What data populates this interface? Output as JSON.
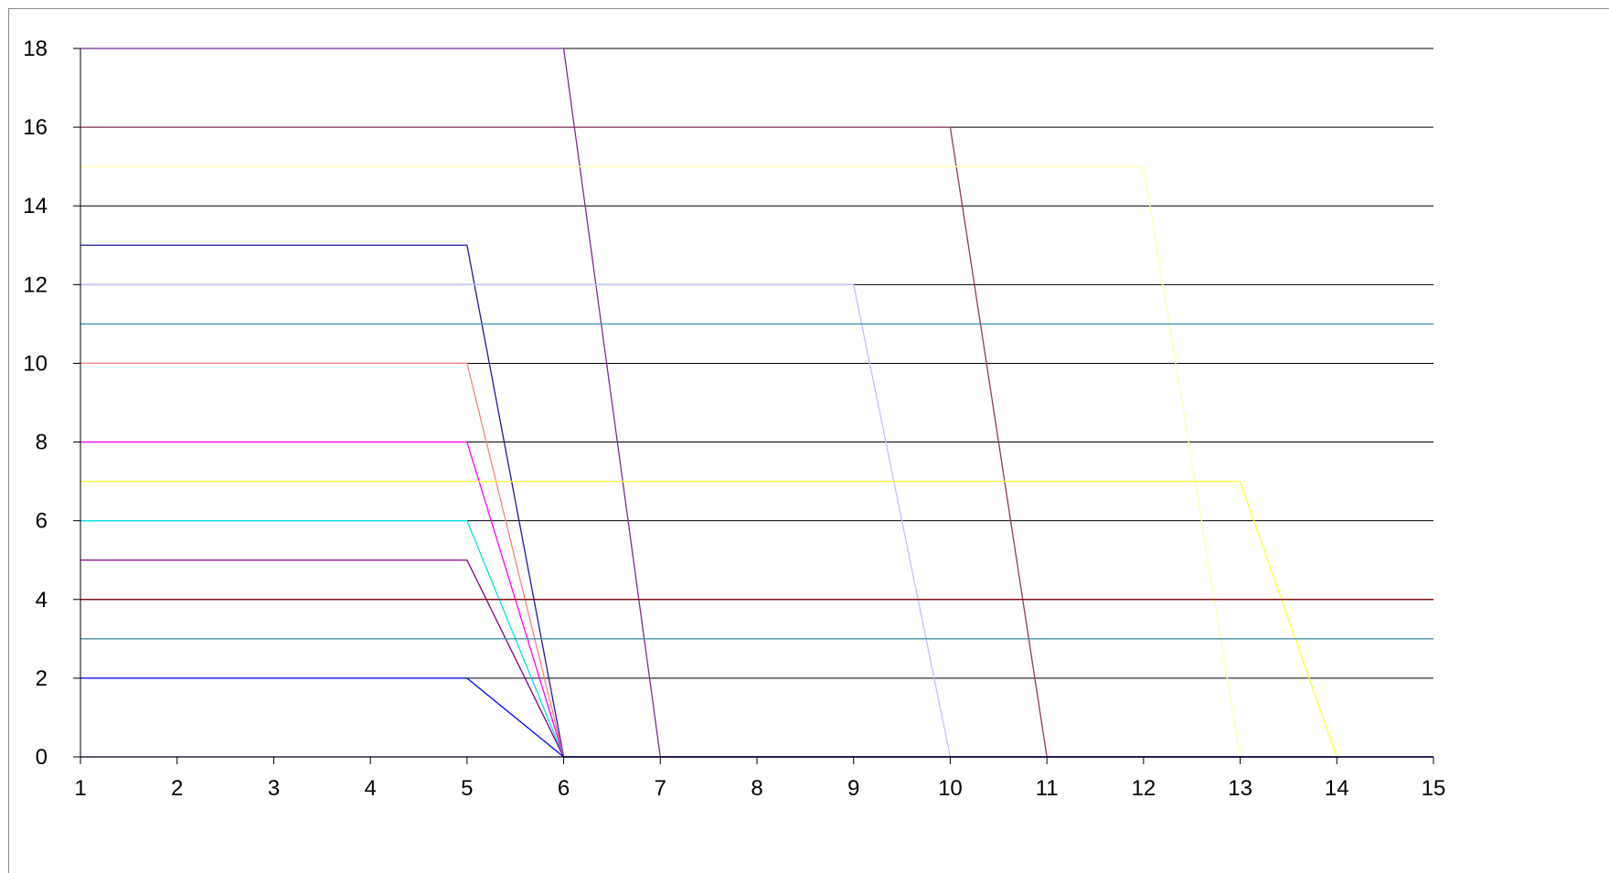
{
  "chart_data": {
    "type": "line",
    "title": "",
    "xlabel": "",
    "ylabel": "",
    "x": [
      1,
      2,
      3,
      4,
      5,
      6,
      7,
      8,
      9,
      10,
      11,
      12,
      13,
      14,
      15
    ],
    "xlim": [
      1,
      15
    ],
    "ylim": [
      0,
      18
    ],
    "x_ticks": [
      "1",
      "2",
      "3",
      "4",
      "5",
      "6",
      "7",
      "8",
      "9",
      "10",
      "11",
      "12",
      "13",
      "14",
      "15"
    ],
    "y_ticks": [
      "0",
      "2",
      "4",
      "6",
      "8",
      "10",
      "12",
      "14",
      "16",
      "18"
    ],
    "y_tick_values": [
      0,
      2,
      4,
      6,
      8,
      10,
      12,
      14,
      16,
      18
    ],
    "grid": "horizontal",
    "legend": "none",
    "series": [
      {
        "color": "#7B2C8F",
        "values": [
          18,
          18,
          18,
          18,
          18,
          18,
          0,
          0,
          0,
          0,
          0,
          0,
          0,
          0,
          0
        ]
      },
      {
        "color": "#8B3A62",
        "values": [
          16,
          16,
          16,
          16,
          16,
          16,
          16,
          16,
          16,
          16,
          0,
          0,
          0,
          0,
          0
        ]
      },
      {
        "color": "#FFFFAA",
        "values": [
          15,
          15,
          15,
          15,
          15,
          15,
          15,
          15,
          15,
          15,
          15,
          15,
          0,
          0,
          0
        ]
      },
      {
        "color": "#1A1A9E",
        "values": [
          13,
          13,
          13,
          13,
          13,
          0,
          0,
          0,
          0,
          0,
          0,
          0,
          0,
          0,
          0
        ]
      },
      {
        "color": "#BFBFFF",
        "values": [
          12,
          12,
          12,
          12,
          12,
          12,
          12,
          12,
          12,
          0,
          0,
          0,
          0,
          0,
          0
        ]
      },
      {
        "color": "#3B8FB5",
        "values": [
          11,
          11,
          11,
          11,
          11,
          11,
          11,
          11,
          11,
          11,
          11,
          11,
          11,
          11,
          11
        ]
      },
      {
        "color": "#FF8080",
        "values": [
          10,
          10,
          10,
          10,
          10,
          0,
          0,
          0,
          0,
          0,
          0,
          0,
          0,
          0,
          0
        ]
      },
      {
        "color": "#FF00FF",
        "values": [
          8,
          8,
          8,
          8,
          8,
          0,
          0,
          0,
          0,
          0,
          0,
          0,
          0,
          0,
          0
        ]
      },
      {
        "color": "#FFFF33",
        "values": [
          7,
          7,
          7,
          7,
          7,
          7,
          7,
          7,
          7,
          7,
          7,
          7,
          7,
          0,
          0
        ]
      },
      {
        "color": "#00E5E5",
        "values": [
          6,
          6,
          6,
          6,
          6,
          0,
          0,
          0,
          0,
          0,
          0,
          0,
          0,
          0,
          0
        ]
      },
      {
        "color": "#800080",
        "values": [
          5,
          5,
          5,
          5,
          5,
          0,
          0,
          0,
          0,
          0,
          0,
          0,
          0,
          0,
          0
        ]
      },
      {
        "color": "#800000",
        "values": [
          4,
          4,
          4,
          4,
          4,
          4,
          4,
          4,
          4,
          4,
          4,
          4,
          4,
          4,
          4
        ]
      },
      {
        "color": "#4A90A4",
        "values": [
          3,
          3,
          3,
          3,
          3,
          3,
          3,
          3,
          3,
          3,
          3,
          3,
          3,
          3,
          3
        ]
      },
      {
        "color": "#0000FF",
        "values": [
          2,
          2,
          2,
          2,
          2,
          0,
          0,
          0,
          0,
          0,
          0,
          0,
          0,
          0,
          0
        ]
      },
      {
        "color": "#000080",
        "values": [
          0,
          0,
          0,
          0,
          0,
          0,
          0,
          0,
          0,
          0,
          0,
          0,
          0,
          0,
          0
        ]
      }
    ]
  }
}
